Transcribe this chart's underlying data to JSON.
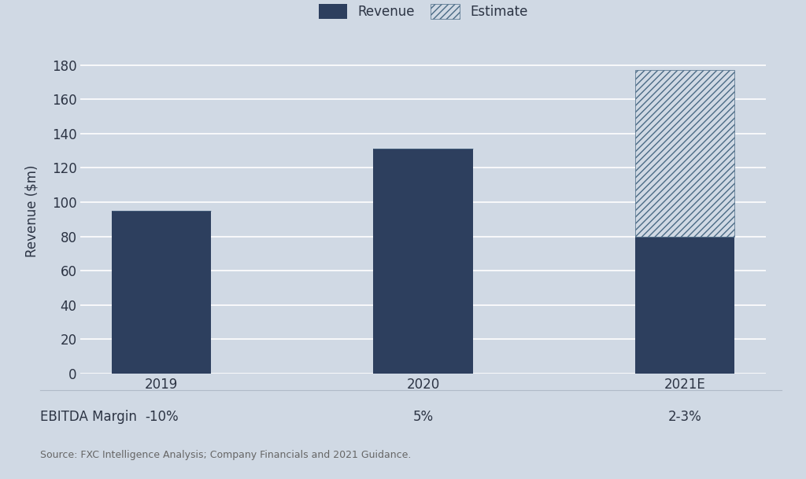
{
  "categories": [
    "2019",
    "2020",
    "2021E"
  ],
  "revenue_actual": [
    95,
    131,
    80
  ],
  "revenue_estimate": [
    0,
    0,
    97
  ],
  "ebitda_margins": [
    "-10%",
    "5%",
    "2-3%"
  ],
  "ylabel": "Revenue ($m)",
  "ylim": [
    0,
    190
  ],
  "yticks": [
    0,
    20,
    40,
    60,
    80,
    100,
    120,
    140,
    160,
    180
  ],
  "bar_color": "#2d3f5e",
  "estimate_facecolor": "#ccd9e3",
  "estimate_hatch_color": "#4a6a85",
  "background_color": "#d0d9e4",
  "legend_revenue_label": "Revenue",
  "legend_estimate_label": "Estimate",
  "ebitda_label": "EBITDA Margin",
  "source_text": "Source: FXC Intelligence Analysis; Company Financials and 2021 Guidance.",
  "axis_fontsize": 12,
  "tick_fontsize": 12,
  "bar_width": 0.38
}
